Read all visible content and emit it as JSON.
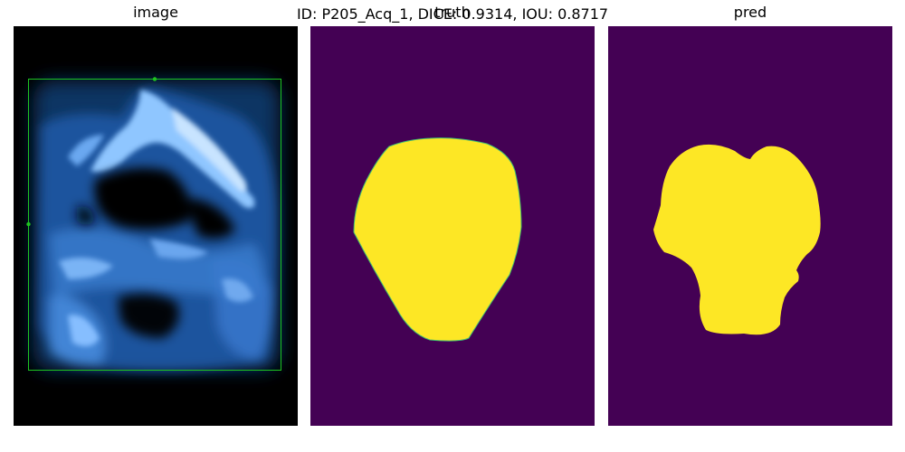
{
  "figure": {
    "suptitle": "ID: P205_Acq_1, DICE: 0.9314, IOU: 0.8717"
  },
  "panels": [
    {
      "title": "image",
      "background": "#000000",
      "bbox_color": "#1fc41f"
    },
    {
      "title": "truth",
      "background": "#440154",
      "mask_color": "#fde725"
    },
    {
      "title": "pred",
      "background": "#440154",
      "mask_color": "#fde725"
    }
  ]
}
